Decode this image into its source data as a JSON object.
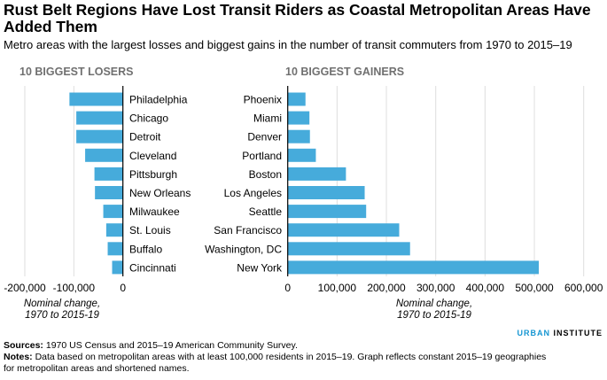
{
  "title": "Rust Belt Regions Have Lost Transit Riders as Coastal Metropolitan Areas Have Added Them",
  "subtitle": "Metro areas with the largest losses and biggest gains in the number of transit commuters from 1970 to 2015–19",
  "colors": {
    "bar": "#46abdb",
    "grid": "#dedede",
    "axis": "#000000",
    "logo_accent": "#1696d2"
  },
  "chart_data": [
    {
      "type": "bar",
      "orientation": "horizontal",
      "title": "10 BIGGEST LOSERS",
      "categories": [
        "Philadelphia",
        "Chicago",
        "Detroit",
        "Cleveland",
        "Pittsburgh",
        "New Orleans",
        "Milwaukee",
        "St. Louis",
        "Buffalo",
        "Cincinnati"
      ],
      "values": [
        -109000,
        -95000,
        -95000,
        -77000,
        -58000,
        -57000,
        -40000,
        -34000,
        -31000,
        -22000
      ],
      "xlim": [
        -200000,
        0
      ],
      "ticks": [
        -200000,
        -100000,
        0
      ],
      "tick_labels": [
        "-200,000",
        "-100,000",
        "0"
      ],
      "xlabel": [
        "Nominal change,",
        "1970 to 2015-19"
      ],
      "grid": true
    },
    {
      "type": "bar",
      "orientation": "horizontal",
      "title": "10 BIGGEST GAINERS",
      "categories": [
        "Phoenix",
        "Miami",
        "Denver",
        "Portland",
        "Boston",
        "Los Angeles",
        "Seattle",
        "San Francisco",
        "Washington, DC",
        "New York"
      ],
      "values": [
        36000,
        44000,
        45000,
        57000,
        118000,
        156000,
        159000,
        226000,
        248000,
        509000
      ],
      "xlim": [
        0,
        600000
      ],
      "ticks": [
        0,
        100000,
        200000,
        300000,
        400000,
        500000,
        600000
      ],
      "tick_labels": [
        "0",
        "100,000",
        "200,000",
        "300,000",
        "400,000",
        "500,000",
        "600,000"
      ],
      "xlabel": [
        "Nominal change,",
        "1970 to 2015-19"
      ],
      "grid": true
    }
  ],
  "footer": {
    "sources_label": "Sources:",
    "sources_text": " 1970 US Census and 2015–19 American Community Survey.",
    "notes_label": "Notes:",
    "notes_text": " Data based on metropolitan areas with at least 100,000 residents in 2015–19. Graph reflects constant 2015–19 geographies for metropolitan areas and shortened names."
  },
  "logo": {
    "part1": "URBAN",
    "part2": "INSTITUTE"
  }
}
